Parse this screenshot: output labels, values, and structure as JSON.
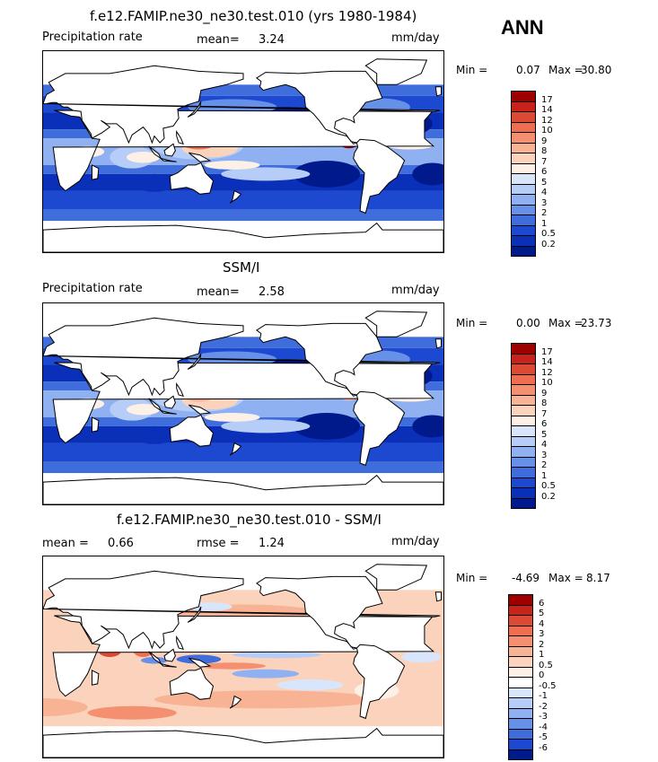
{
  "page": {
    "season": "ANN"
  },
  "panels": [
    {
      "title": "f.e12.FAMIP.ne30_ne30.test.010 (yrs 1980-1984)",
      "left_label": "Precipitation rate",
      "mid_label": "mean=",
      "mid_value": "3.24",
      "units": "mm/day",
      "min_label": "Min =",
      "min_value": "0.07",
      "max_label": "Max =",
      "max_value": "30.80"
    },
    {
      "title": "SSM/I",
      "left_label": "Precipitation rate",
      "mid_label": "mean=",
      "mid_value": "2.58",
      "units": "mm/day",
      "min_label": "Min =",
      "min_value": "0.00",
      "max_label": "Max =",
      "max_value": "23.73"
    },
    {
      "title": "f.e12.FAMIP.ne30_ne30.test.010 - SSM/I",
      "left_label": "mean =",
      "left_value": "0.66",
      "mid_label": "rmse =",
      "mid_value": "1.24",
      "units": "mm/day",
      "min_label": "Min =",
      "min_value": "-4.69",
      "max_label": "Max =",
      "max_value": "8.17"
    }
  ],
  "chart_data": [
    {
      "type": "heatmap",
      "title": "f.e12.FAMIP.ne30_ne30.test.010 (yrs 1980-1984)",
      "variable": "Precipitation rate",
      "units": "mm/day",
      "mean": 3.24,
      "min": 0.07,
      "max": 30.8,
      "colorbar_levels": [
        "17",
        "14",
        "12",
        "10",
        "9",
        "8",
        "7",
        "6",
        "5",
        "4",
        "3",
        "2",
        "1",
        "0.5",
        "0.2"
      ],
      "colorbar_colors": [
        "#9e0000",
        "#c8231a",
        "#dc4a33",
        "#ee6e4f",
        "#f4906f",
        "#f8b294",
        "#fbd2bb",
        "#fdf0e6",
        "#d9e5fb",
        "#b6cdf7",
        "#8fb1f1",
        "#6790e8",
        "#3f6ddc",
        "#1c49cf",
        "#0a2fb8",
        "#001a8c"
      ]
    },
    {
      "type": "heatmap",
      "title": "SSM/I",
      "variable": "Precipitation rate",
      "units": "mm/day",
      "mean": 2.58,
      "min": 0.0,
      "max": 23.73,
      "colorbar_levels": [
        "17",
        "14",
        "12",
        "10",
        "9",
        "8",
        "7",
        "6",
        "5",
        "4",
        "3",
        "2",
        "1",
        "0.5",
        "0.2"
      ],
      "colorbar_colors": [
        "#9e0000",
        "#c8231a",
        "#dc4a33",
        "#ee6e4f",
        "#f4906f",
        "#f8b294",
        "#fbd2bb",
        "#fdf0e6",
        "#d9e5fb",
        "#b6cdf7",
        "#8fb1f1",
        "#6790e8",
        "#3f6ddc",
        "#1c49cf",
        "#0a2fb8",
        "#001a8c"
      ]
    },
    {
      "type": "heatmap",
      "title": "f.e12.FAMIP.ne30_ne30.test.010 - SSM/I",
      "units": "mm/day",
      "mean": 0.66,
      "rmse": 1.24,
      "min": -4.69,
      "max": 8.17,
      "colorbar_levels": [
        "6",
        "5",
        "4",
        "3",
        "2",
        "1",
        "0.5",
        "0",
        "-0.5",
        "-1",
        "-2",
        "-3",
        "-4",
        "-5",
        "-6"
      ],
      "colorbar_colors": [
        "#9e0000",
        "#c8231a",
        "#dc4a33",
        "#ee6e4f",
        "#f4906f",
        "#f8b294",
        "#fbd2bb",
        "#fdf0e6",
        "#ffffff",
        "#d9e5fb",
        "#b6cdf7",
        "#8fb1f1",
        "#6790e8",
        "#3f6ddc",
        "#1c49cf",
        "#001a8c"
      ]
    }
  ]
}
